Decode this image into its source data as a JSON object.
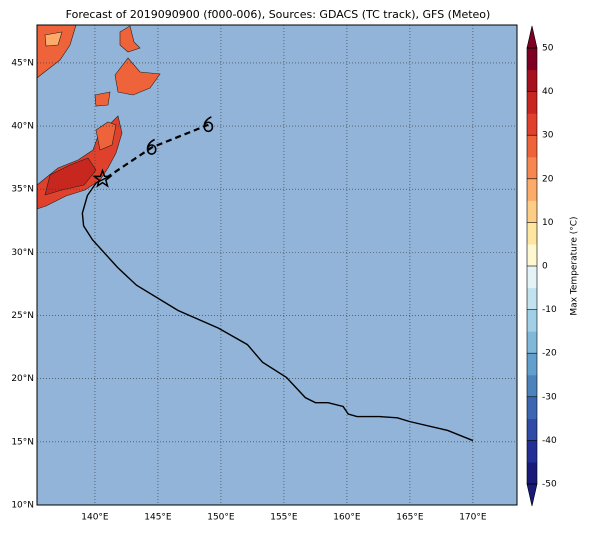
{
  "chart_data": {
    "type": "map",
    "title": "Forecast of 2019090900 (f000-006), Sources: GDACS (TC track), GFS (Meteo)",
    "xlim": [
      135.4,
      173.5
    ],
    "ylim": [
      10,
      48
    ],
    "xticks": [
      {
        "value": 140,
        "label": "140°E"
      },
      {
        "value": 145,
        "label": "145°E"
      },
      {
        "value": 150,
        "label": "150°E"
      },
      {
        "value": 155,
        "label": "155°E"
      },
      {
        "value": 160,
        "label": "160°E"
      },
      {
        "value": 165,
        "label": "165°E"
      },
      {
        "value": 170,
        "label": "170°E"
      }
    ],
    "yticks": [
      {
        "value": 10,
        "label": "10°N"
      },
      {
        "value": 15,
        "label": "15°N"
      },
      {
        "value": 20,
        "label": "20°N"
      },
      {
        "value": 25,
        "label": "25°N"
      },
      {
        "value": 30,
        "label": "30°N"
      },
      {
        "value": 35,
        "label": "35°N"
      },
      {
        "value": 40,
        "label": "40°N"
      },
      {
        "value": 45,
        "label": "45°N"
      }
    ],
    "grid": true,
    "ocean_color": "#91b4d8",
    "tracks": [
      {
        "style": "solid",
        "color": "#000000",
        "lon": [
          170.0,
          168.0,
          165.0,
          164.0,
          162.6,
          160.8,
          160.1,
          159.7,
          158.5,
          157.5,
          156.7,
          155.2,
          153.3,
          152.1,
          149.8,
          146.6,
          143.3,
          141.8,
          139.8,
          139.1,
          139.0,
          139.4,
          140.1,
          140.9
        ],
        "lat": [
          15.1,
          15.9,
          16.6,
          16.9,
          17.0,
          17.0,
          17.2,
          17.8,
          18.1,
          18.1,
          18.5,
          20.1,
          21.3,
          22.7,
          24.0,
          25.4,
          27.4,
          28.8,
          31.0,
          32.1,
          33.1,
          34.5,
          35.5,
          35.9
        ]
      },
      {
        "style": "dashed",
        "color": "#000000",
        "lon": [
          140.9,
          144.5,
          149.0
        ],
        "lat": [
          35.9,
          38.3,
          40.1
        ]
      }
    ],
    "markers": {
      "lon": [
        144.5,
        149.0
      ],
      "lat": [
        38.3,
        40.1
      ]
    },
    "star": {
      "lon": [
        140.6
      ],
      "lat": [
        35.8
      ]
    },
    "colorbar": {
      "label": "Max Temperature (°C)",
      "lim": [
        -50,
        50
      ],
      "ticks": [
        -50,
        -40,
        -30,
        -20,
        -10,
        0,
        10,
        20,
        30,
        40,
        50
      ],
      "colors": [
        "#1a1a7a",
        "#242f96",
        "#2f4ba6",
        "#3c66b1",
        "#4d83bd",
        "#629fcc",
        "#7fb8d9",
        "#a1cfe6",
        "#c3e2ef",
        "#e5f3f7",
        "#fdf8d0",
        "#fee6a0",
        "#fdcd85",
        "#fcab68",
        "#f7874f",
        "#ef633b",
        "#e0412c",
        "#c8271f",
        "#a6111f",
        "#7e0022"
      ]
    }
  }
}
